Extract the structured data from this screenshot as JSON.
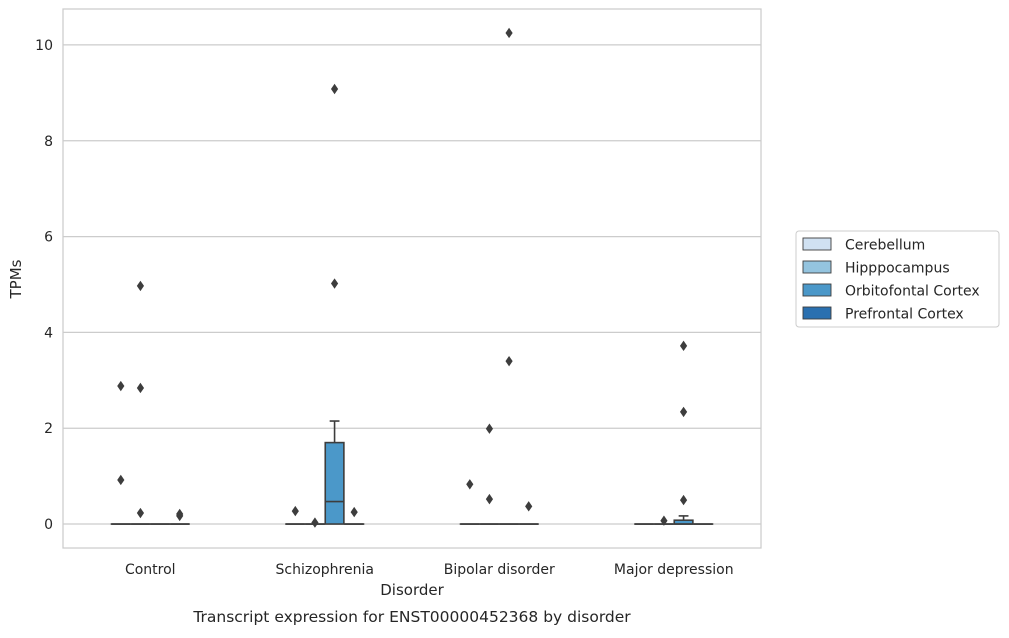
{
  "chart_data": {
    "type": "box",
    "title": "Transcript expression for ENST00000452368 by disorder",
    "xlabel": "Disorder",
    "ylabel": "TPMs",
    "ylim": [
      -0.5,
      10.75
    ],
    "yticks": [
      0,
      2,
      4,
      6,
      8,
      10
    ],
    "grid": "horizontal",
    "legend_position": "right",
    "categories": [
      "Control",
      "Schizophrenia",
      "Bipolar disorder",
      "Major depression"
    ],
    "series": [
      {
        "name": "Cerebellum",
        "color": "#d0e1f2",
        "boxes": [
          {
            "min": 0,
            "q1": 0,
            "median": 0,
            "q3": 0,
            "max": 0,
            "outliers": [
              0.92,
              2.88
            ]
          },
          {
            "min": 0,
            "q1": 0,
            "median": 0,
            "q3": 0,
            "max": 0,
            "outliers": [
              0.27
            ]
          },
          {
            "min": 0,
            "q1": 0,
            "median": 0,
            "q3": 0,
            "max": 0,
            "outliers": [
              0.83
            ]
          },
          {
            "min": 0,
            "q1": 0,
            "median": 0,
            "q3": 0,
            "max": 0,
            "outliers": []
          }
        ]
      },
      {
        "name": "Hipppocampus",
        "color": "#94c4df",
        "boxes": [
          {
            "min": 0,
            "q1": 0,
            "median": 0,
            "q3": 0,
            "max": 0,
            "outliers": [
              0.23,
              2.84,
              4.97
            ]
          },
          {
            "min": 0,
            "q1": 0,
            "median": 0,
            "q3": 0,
            "max": 0,
            "outliers": [
              0.03
            ]
          },
          {
            "min": 0,
            "q1": 0,
            "median": 0,
            "q3": 0,
            "max": 0,
            "outliers": [
              0.52,
              1.99
            ]
          },
          {
            "min": 0,
            "q1": 0,
            "median": 0,
            "q3": 0,
            "max": 0,
            "outliers": [
              0.07
            ]
          }
        ]
      },
      {
        "name": "Orbitofontal Cortex",
        "color": "#4b98c9",
        "boxes": [
          {
            "min": 0,
            "q1": 0,
            "median": 0,
            "q3": 0,
            "max": 0,
            "outliers": []
          },
          {
            "min": 0,
            "q1": 0,
            "median": 0.47,
            "q3": 1.7,
            "max": 2.15,
            "outliers": [
              5.02,
              9.08
            ]
          },
          {
            "min": 0,
            "q1": 0,
            "median": 0,
            "q3": 0,
            "max": 0,
            "outliers": [
              3.4,
              10.25
            ]
          },
          {
            "min": 0,
            "q1": 0,
            "median": 0,
            "q3": 0.08,
            "max": 0.17,
            "outliers": [
              0.5,
              2.34,
              3.72
            ]
          }
        ]
      },
      {
        "name": "Prefrontal Cortex",
        "color": "#2a70b0",
        "boxes": [
          {
            "min": 0,
            "q1": 0,
            "median": 0,
            "q3": 0,
            "max": 0,
            "outliers": [
              0.17,
              0.21
            ]
          },
          {
            "min": 0,
            "q1": 0,
            "median": 0,
            "q3": 0,
            "max": 0,
            "outliers": [
              0.25
            ]
          },
          {
            "min": 0,
            "q1": 0,
            "median": 0,
            "q3": 0,
            "max": 0,
            "outliers": [
              0.37
            ]
          },
          {
            "min": 0,
            "q1": 0,
            "median": 0,
            "q3": 0,
            "max": 0,
            "outliers": []
          }
        ]
      }
    ]
  }
}
